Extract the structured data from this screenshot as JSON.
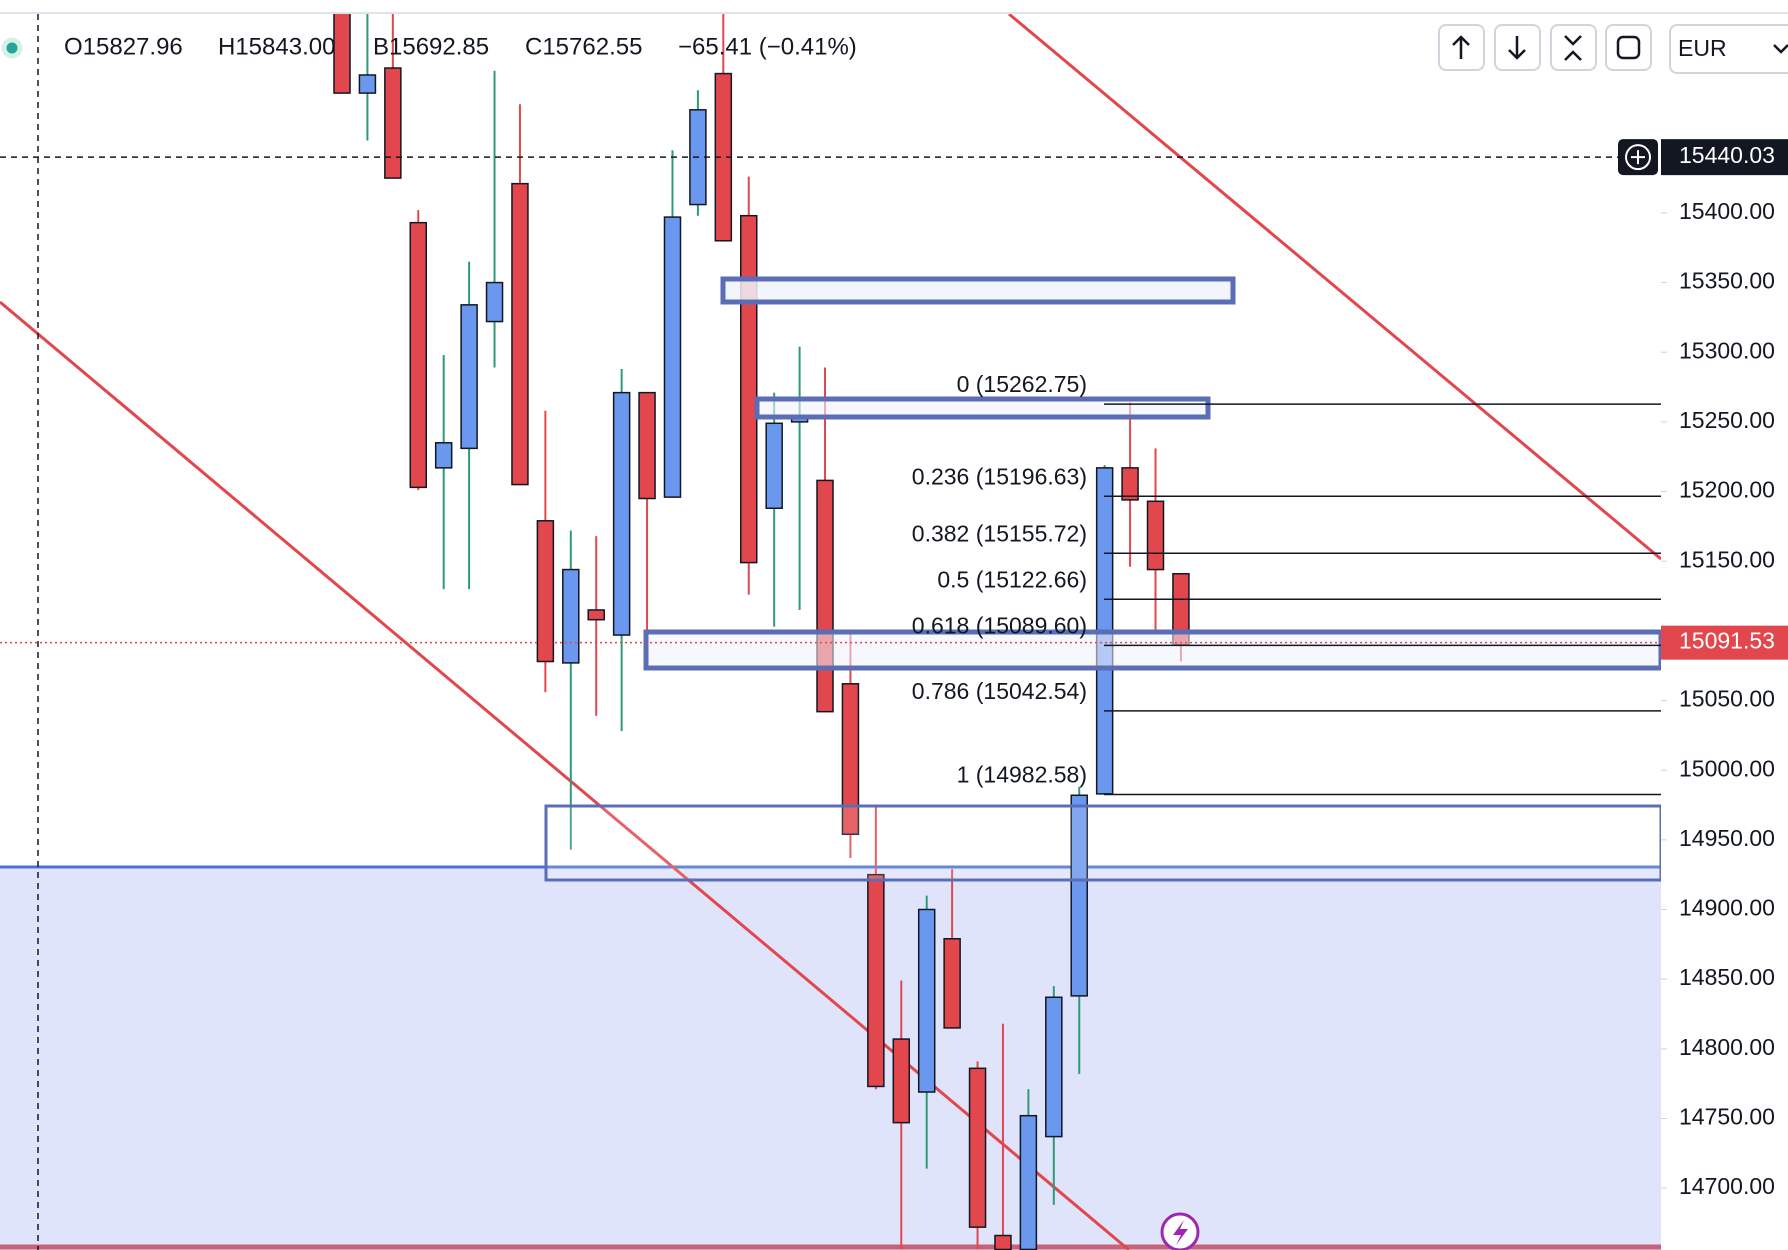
{
  "header": {
    "open": "O15827.96",
    "high": "H15843.00",
    "low": "B15692.85",
    "close": "C15762.55",
    "change": "−65.41 (−0.41%)"
  },
  "toolbar": {
    "currency": "EUR"
  },
  "chart_data": {
    "type": "candlestick",
    "up_color": "#6a98ee",
    "down_color": "#e2474d",
    "ylim": [
      14656,
      15543
    ],
    "yticks": [
      {
        "value": 14700,
        "label": "14700.00"
      },
      {
        "value": 14750,
        "label": "14750.00"
      },
      {
        "value": 14800,
        "label": "14800.00"
      },
      {
        "value": 14850,
        "label": "14850.00"
      },
      {
        "value": 14900,
        "label": "14900.00"
      },
      {
        "value": 14950,
        "label": "14950.00"
      },
      {
        "value": 15000,
        "label": "15000.00"
      },
      {
        "value": 15050,
        "label": "15050.00"
      },
      {
        "value": 15150,
        "label": "15150.00"
      },
      {
        "value": 15200,
        "label": "15200.00"
      },
      {
        "value": 15250,
        "label": "15250.00"
      },
      {
        "value": 15300,
        "label": "15300.00"
      },
      {
        "value": 15350,
        "label": "15350.00"
      },
      {
        "value": 15400,
        "label": "15400.00"
      }
    ],
    "crosshair": 15440.03,
    "last_price": 15091.53,
    "fib_levels": [
      {
        "value": 15262.75,
        "label": "0 (15262.75)"
      },
      {
        "value": 15196.63,
        "label": "0.236 (15196.63)"
      },
      {
        "value": 15155.72,
        "label": "0.382 (15155.72)"
      },
      {
        "value": 15122.66,
        "label": "0.5 (15122.66)"
      },
      {
        "value": 15089.6,
        "label": "0.618 (15089.60)"
      },
      {
        "value": 15042.54,
        "label": "0.786 (15042.54)"
      },
      {
        "value": 14982.58,
        "label": "1 (14982.58)"
      }
    ],
    "candles": [
      {
        "open": 15545,
        "high": 15553,
        "low": 15486,
        "close": 15486
      },
      {
        "open": 15486,
        "high": 15545,
        "low": 15452,
        "close": 15499
      },
      {
        "open": 15504,
        "high": 15545,
        "low": 15425,
        "close": 15425
      },
      {
        "open": 15393,
        "high": 15402,
        "low": 15201,
        "close": 15203
      },
      {
        "open": 15217,
        "high": 15298,
        "low": 15130,
        "close": 15235
      },
      {
        "open": 15231,
        "high": 15365,
        "low": 15130,
        "close": 15334
      },
      {
        "open": 15322,
        "high": 15502,
        "low": 15289,
        "close": 15350
      },
      {
        "open": 15421,
        "high": 15478,
        "low": 15205,
        "close": 15205
      },
      {
        "open": 15179,
        "high": 15258,
        "low": 15056,
        "close": 15078
      },
      {
        "open": 15077,
        "high": 15172,
        "low": 14943,
        "close": 15144
      },
      {
        "open": 15115,
        "high": 15168,
        "low": 15039,
        "close": 15108
      },
      {
        "open": 15097,
        "high": 15288,
        "low": 15028,
        "close": 15271
      },
      {
        "open": 15271,
        "high": 15271,
        "low": 15078,
        "close": 15195
      },
      {
        "open": 15196,
        "high": 15445,
        "low": 15196,
        "close": 15397
      },
      {
        "open": 15406,
        "high": 15488,
        "low": 15398,
        "close": 15474
      },
      {
        "open": 15500,
        "high": 15543,
        "low": 15380,
        "close": 15380
      },
      {
        "open": 15398,
        "high": 15426,
        "low": 15126,
        "close": 15149
      },
      {
        "open": 15188,
        "high": 15271,
        "low": 15103,
        "close": 15249
      },
      {
        "open": 15250,
        "high": 15304,
        "low": 15115,
        "close": 15254
      },
      {
        "open": 15208,
        "high": 15289,
        "low": 15042,
        "close": 15042
      },
      {
        "open": 15062,
        "high": 15099,
        "low": 14937,
        "close": 14954
      },
      {
        "open": 14925,
        "high": 14974,
        "low": 14771,
        "close": 14773
      },
      {
        "open": 14807,
        "high": 14849,
        "low": 14656,
        "close": 14747
      },
      {
        "open": 14769,
        "high": 14910,
        "low": 14714,
        "close": 14900
      },
      {
        "open": 14879,
        "high": 14929,
        "low": 14815,
        "close": 14815
      },
      {
        "open": 14786,
        "high": 14791,
        "low": 14656,
        "close": 14672
      },
      {
        "open": 14666,
        "high": 14818,
        "low": 14656,
        "close": 14656
      },
      {
        "open": 14656,
        "high": 14771,
        "low": 14656,
        "close": 14752
      },
      {
        "open": 14737,
        "high": 14845,
        "low": 14688,
        "close": 14837
      },
      {
        "open": 14838,
        "high": 14988,
        "low": 14782,
        "close": 14982
      },
      {
        "open": 14983,
        "high": 15219,
        "low": 14983,
        "close": 15217
      },
      {
        "open": 15217,
        "high": 15264,
        "low": 15146,
        "close": 15194
      },
      {
        "open": 15193,
        "high": 15231,
        "low": 15101,
        "close": 15144
      },
      {
        "open": 15141,
        "high": 15141,
        "low": 15078,
        "close": 15090
      }
    ]
  }
}
